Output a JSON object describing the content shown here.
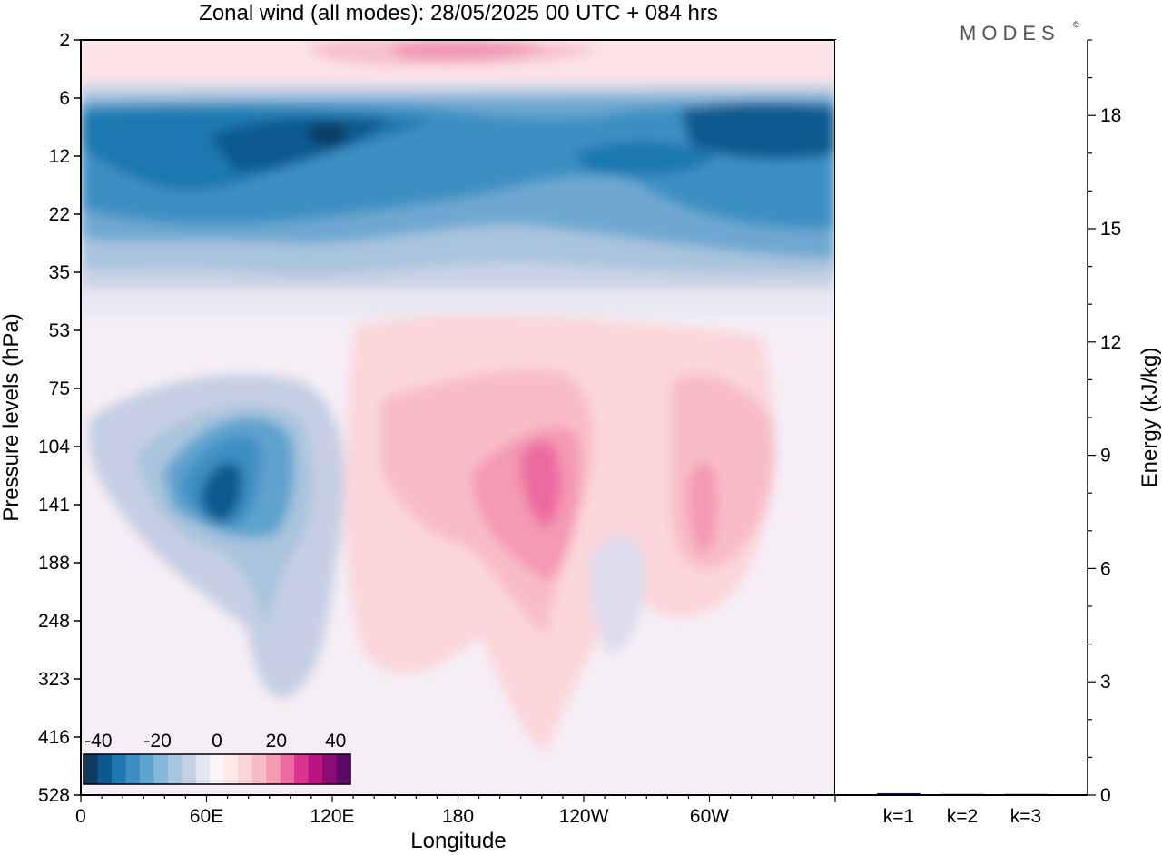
{
  "title": "Zonal wind (all modes):  28/05/2025  00 UTC  + 084 hrs",
  "logo": "MODES",
  "logo_mark": "©",
  "chart_data": [
    {
      "type": "heatmap",
      "title": "Zonal wind (all modes):  28/05/2025  00 UTC  + 084 hrs",
      "xlabel": "Longitude",
      "ylabel": "Pressure levels (hPa)",
      "x_ticks": [
        "0",
        "60E",
        "120E",
        "180",
        "120W",
        "60W"
      ],
      "x_tick_lon": [
        0,
        60,
        120,
        180,
        240,
        300
      ],
      "xlim": [
        0,
        360
      ],
      "y_ticks": [
        "2",
        "6",
        "12",
        "22",
        "35",
        "53",
        "75",
        "104",
        "141",
        "188",
        "248",
        "323",
        "416",
        "528"
      ],
      "colorbar": {
        "labels": [
          "-40",
          "-20",
          "0",
          "20",
          "40"
        ],
        "label_values": [
          -40,
          -20,
          0,
          20,
          40
        ],
        "range": [
          -45,
          45
        ],
        "colors": [
          "#0d3a5e",
          "#0b5a8f",
          "#1e78b0",
          "#3d8fc2",
          "#5fa3cf",
          "#86b7d9",
          "#a9c4dd",
          "#c6cfe3",
          "#e4e6f1",
          "#faf5f8",
          "#fde9ea",
          "#fbd4d8",
          "#f8bcc7",
          "#f49ab3",
          "#ec6aa0",
          "#d9348e",
          "#b8127e",
          "#8c0a75",
          "#5c0a6a"
        ]
      },
      "features": [
        {
          "lon": 45,
          "level": "12",
          "value": -40
        },
        {
          "lon": 110,
          "level": "12",
          "value": -38
        },
        {
          "lon": 310,
          "level": "12",
          "value": -36
        },
        {
          "lon": 65,
          "level": "141",
          "value": -30
        },
        {
          "lon": 210,
          "level": "141",
          "value": 28
        },
        {
          "lon": 296,
          "level": "141",
          "value": 18
        },
        {
          "lon": 220,
          "level": "2",
          "value": 22
        }
      ]
    },
    {
      "type": "bar",
      "ylabel": "Energy (kJ/kg)",
      "categories": [
        "k=1",
        "k=2",
        "k=3"
      ],
      "values": [
        0.05,
        0.03,
        0.03
      ],
      "ylim": [
        0,
        20
      ],
      "y_ticks": [
        "0",
        "3",
        "6",
        "9",
        "12",
        "15",
        "18"
      ]
    }
  ]
}
